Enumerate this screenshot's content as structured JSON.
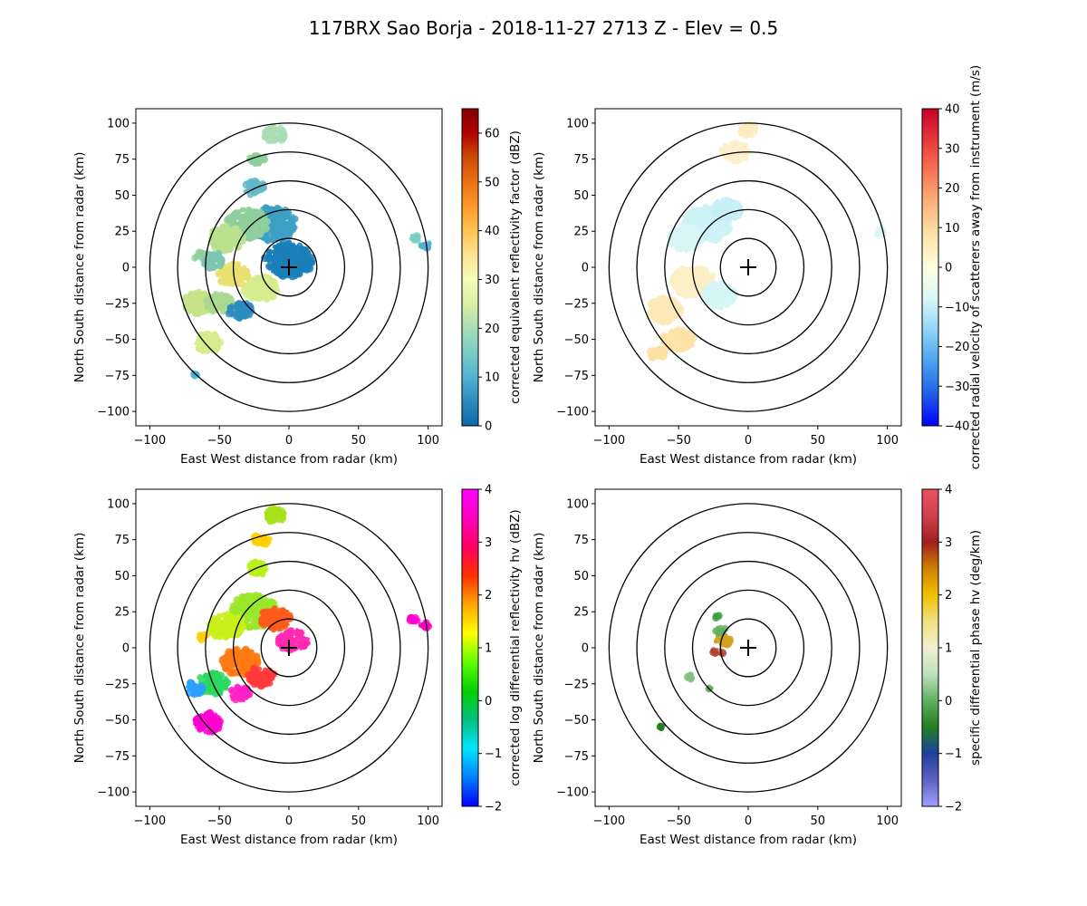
{
  "title": "117BRX Sao Borja - 2018-11-27 2713 Z -  Elev = 0.5",
  "chart_data": [
    {
      "type": "heatmap",
      "id": "reflectivity",
      "xlabel": "East West distance from radar (km)",
      "ylabel": "North South distance from radar (km)",
      "xlim": [
        -110,
        110
      ],
      "ylim": [
        -110,
        110
      ],
      "xticks": [
        -100,
        -50,
        0,
        50,
        100
      ],
      "yticks": [
        -100,
        -75,
        -50,
        -25,
        0,
        25,
        50,
        75,
        100
      ],
      "range_rings_km": [
        20,
        40,
        60,
        80,
        100
      ],
      "radar_marker": [
        0,
        0
      ],
      "colorbar": {
        "label": "corrected equivalent reflectivity factor (dBZ)",
        "range": [
          0,
          65
        ],
        "ticks": [
          0,
          10,
          20,
          30,
          40,
          50,
          60
        ],
        "colors": [
          "#0868ac",
          "#2b8cbe",
          "#4eb3d3",
          "#7bccc4",
          "#a8ddb5",
          "#d9f0a3",
          "#f7fcb9",
          "#fee391",
          "#fec44f",
          "#fe9929",
          "#ec7014",
          "#cc4c02",
          "#b30000",
          "#7f0000"
        ]
      },
      "echo_clusters": [
        {
          "x": 0,
          "y": 5,
          "r": 14,
          "color": "#1a7fb8"
        },
        {
          "x": -12,
          "y": 30,
          "r": 14,
          "color": "#3d9fc4"
        },
        {
          "x": -30,
          "y": 30,
          "r": 12,
          "color": "#8fcf9b"
        },
        {
          "x": -45,
          "y": 20,
          "r": 10,
          "color": "#b8e08e"
        },
        {
          "x": -20,
          "y": -15,
          "r": 10,
          "color": "#d6ec8c"
        },
        {
          "x": -40,
          "y": -5,
          "r": 9,
          "color": "#e8e070"
        },
        {
          "x": -55,
          "y": 5,
          "r": 7,
          "color": "#7cc5b0"
        },
        {
          "x": -65,
          "y": -25,
          "r": 9,
          "color": "#c6e38a"
        },
        {
          "x": -50,
          "y": -25,
          "r": 8,
          "color": "#aad88f"
        },
        {
          "x": -35,
          "y": -30,
          "r": 7,
          "color": "#2b8cbe"
        },
        {
          "x": -58,
          "y": -52,
          "r": 8,
          "color": "#d6ec8c"
        },
        {
          "x": -25,
          "y": 55,
          "r": 6,
          "color": "#62b9c9"
        },
        {
          "x": -22,
          "y": 75,
          "r": 5,
          "color": "#8fcf9b"
        },
        {
          "x": -10,
          "y": 92,
          "r": 6,
          "color": "#a8ddb5"
        },
        {
          "x": 90,
          "y": 20,
          "r": 3,
          "color": "#7bccc4"
        },
        {
          "x": 98,
          "y": 15,
          "r": 3,
          "color": "#4eb3d3"
        },
        {
          "x": -65,
          "y": 8,
          "r": 3,
          "color": "#8fcf9b"
        },
        {
          "x": -68,
          "y": -75,
          "r": 2,
          "color": "#4eb3d3"
        }
      ]
    },
    {
      "type": "heatmap",
      "id": "velocity",
      "xlabel": "East West distance from radar (km)",
      "ylabel": "North South distance from radar (km)",
      "xlim": [
        -110,
        110
      ],
      "ylim": [
        -110,
        110
      ],
      "xticks": [
        -100,
        -50,
        0,
        50,
        100
      ],
      "yticks": [
        -100,
        -75,
        -50,
        -25,
        0,
        25,
        50,
        75,
        100
      ],
      "range_rings_km": [
        20,
        40,
        60,
        80,
        100
      ],
      "radar_marker": [
        0,
        0
      ],
      "colorbar": {
        "label": "corrected radial velocity of scatterers away from instrument (m/s)",
        "range": [
          -40,
          40
        ],
        "ticks": [
          -40,
          -30,
          -20,
          -10,
          0,
          10,
          20,
          30,
          40
        ],
        "colors": [
          "#0000ff",
          "#1f5fe8",
          "#4aa0ef",
          "#8fd4f7",
          "#d8f6f6",
          "#ffffe0",
          "#fde3a7",
          "#fbb47a",
          "#f77755",
          "#e8383a",
          "#c80028"
        ]
      },
      "echo_clusters": [
        {
          "x": -30,
          "y": 30,
          "r": 14,
          "color": "#cdf2f7"
        },
        {
          "x": -45,
          "y": 20,
          "r": 10,
          "color": "#d9f4f7"
        },
        {
          "x": -15,
          "y": 40,
          "r": 8,
          "color": "#c7eff6"
        },
        {
          "x": -40,
          "y": -10,
          "r": 12,
          "color": "#fdeec4"
        },
        {
          "x": -60,
          "y": -30,
          "r": 10,
          "color": "#fde9b8"
        },
        {
          "x": -50,
          "y": -50,
          "r": 9,
          "color": "#fde3a7"
        },
        {
          "x": -65,
          "y": -60,
          "r": 5,
          "color": "#fce0a0"
        },
        {
          "x": -10,
          "y": 80,
          "r": 8,
          "color": "#fdf0cc"
        },
        {
          "x": 0,
          "y": 95,
          "r": 5,
          "color": "#fdecc0"
        },
        {
          "x": -20,
          "y": -20,
          "r": 10,
          "color": "#d6f5f7"
        },
        {
          "x": 95,
          "y": 25,
          "r": 3,
          "color": "#d9f4f7"
        }
      ]
    },
    {
      "type": "heatmap",
      "id": "differential-reflectivity",
      "xlabel": "East West distance from radar (km)",
      "ylabel": "North South distance from radar (km)",
      "xlim": [
        -110,
        110
      ],
      "ylim": [
        -110,
        110
      ],
      "xticks": [
        -100,
        -50,
        0,
        50,
        100
      ],
      "yticks": [
        -100,
        -75,
        -50,
        -25,
        0,
        25,
        50,
        75,
        100
      ],
      "range_rings_km": [
        20,
        40,
        60,
        80,
        100
      ],
      "radar_marker": [
        0,
        0
      ],
      "colorbar": {
        "label": "corrected log differential reflectivity hv (dBZ)",
        "range": [
          -2,
          4
        ],
        "ticks": [
          -2,
          -1,
          0,
          1,
          2,
          3,
          4
        ],
        "colors": [
          "#0000ff",
          "#0080ff",
          "#00e5ff",
          "#00c080",
          "#00d000",
          "#60ff00",
          "#ffff00",
          "#ffa500",
          "#ff3000",
          "#ff0060",
          "#ff00c0",
          "#ff00ff"
        ]
      },
      "echo_clusters": [
        {
          "x": -25,
          "y": 25,
          "r": 14,
          "color": "#9ae62a"
        },
        {
          "x": -10,
          "y": 20,
          "r": 9,
          "color": "#ff5a1a"
        },
        {
          "x": 3,
          "y": 5,
          "r": 9,
          "color": "#ff2ab0"
        },
        {
          "x": -45,
          "y": 15,
          "r": 10,
          "color": "#c8f01a"
        },
        {
          "x": -35,
          "y": -10,
          "r": 11,
          "color": "#ff7a10"
        },
        {
          "x": -20,
          "y": -20,
          "r": 8,
          "color": "#ff3a3a"
        },
        {
          "x": -55,
          "y": -25,
          "r": 9,
          "color": "#2ad860"
        },
        {
          "x": -68,
          "y": -28,
          "r": 5,
          "color": "#2aa0ff"
        },
        {
          "x": -35,
          "y": -32,
          "r": 6,
          "color": "#ff22c8"
        },
        {
          "x": -58,
          "y": -52,
          "r": 8,
          "color": "#ff00d0"
        },
        {
          "x": -22,
          "y": 55,
          "r": 6,
          "color": "#b8f01a"
        },
        {
          "x": -20,
          "y": 75,
          "r": 5,
          "color": "#ffd000"
        },
        {
          "x": -10,
          "y": 92,
          "r": 6,
          "color": "#a8e01a"
        },
        {
          "x": 90,
          "y": 20,
          "r": 3,
          "color": "#ff00d0"
        },
        {
          "x": 98,
          "y": 15,
          "r": 3,
          "color": "#ff00c0"
        },
        {
          "x": -62,
          "y": 8,
          "r": 3,
          "color": "#ffd000"
        }
      ]
    },
    {
      "type": "heatmap",
      "id": "specific-differential-phase",
      "xlabel": "East West distance from radar (km)",
      "ylabel": "North South distance from radar (km)",
      "xlim": [
        -110,
        110
      ],
      "ylim": [
        -110,
        110
      ],
      "xticks": [
        -100,
        -50,
        0,
        50,
        100
      ],
      "yticks": [
        -100,
        -75,
        -50,
        -25,
        0,
        25,
        50,
        75,
        100
      ],
      "range_rings_km": [
        20,
        40,
        60,
        80,
        100
      ],
      "radar_marker": [
        0,
        0
      ],
      "colorbar": {
        "label": "specific differential phase hv (deg/km)",
        "range": [
          -2,
          4
        ],
        "ticks": [
          -2,
          -1,
          0,
          1,
          2,
          3,
          4
        ],
        "colors": [
          "#a0a0ff",
          "#6060c0",
          "#2040a0",
          "#208020",
          "#60b060",
          "#c0e0c0",
          "#f0f0d0",
          "#f0e080",
          "#f0c000",
          "#d08000",
          "#a02020",
          "#d04050",
          "#f05060"
        ]
      },
      "echo_clusters": [
        {
          "x": -18,
          "y": 5,
          "r": 5,
          "color": "#d4a020"
        },
        {
          "x": -22,
          "y": -3,
          "r": 3,
          "color": "#b04030"
        },
        {
          "x": -20,
          "y": 12,
          "r": 3,
          "color": "#60b060"
        },
        {
          "x": -23,
          "y": 22,
          "r": 2,
          "color": "#40a040"
        },
        {
          "x": -42,
          "y": -20,
          "r": 2,
          "color": "#80c080"
        },
        {
          "x": -28,
          "y": -28,
          "r": 2,
          "color": "#60b060"
        },
        {
          "x": -62,
          "y": -55,
          "r": 1.5,
          "color": "#208020"
        }
      ]
    }
  ]
}
